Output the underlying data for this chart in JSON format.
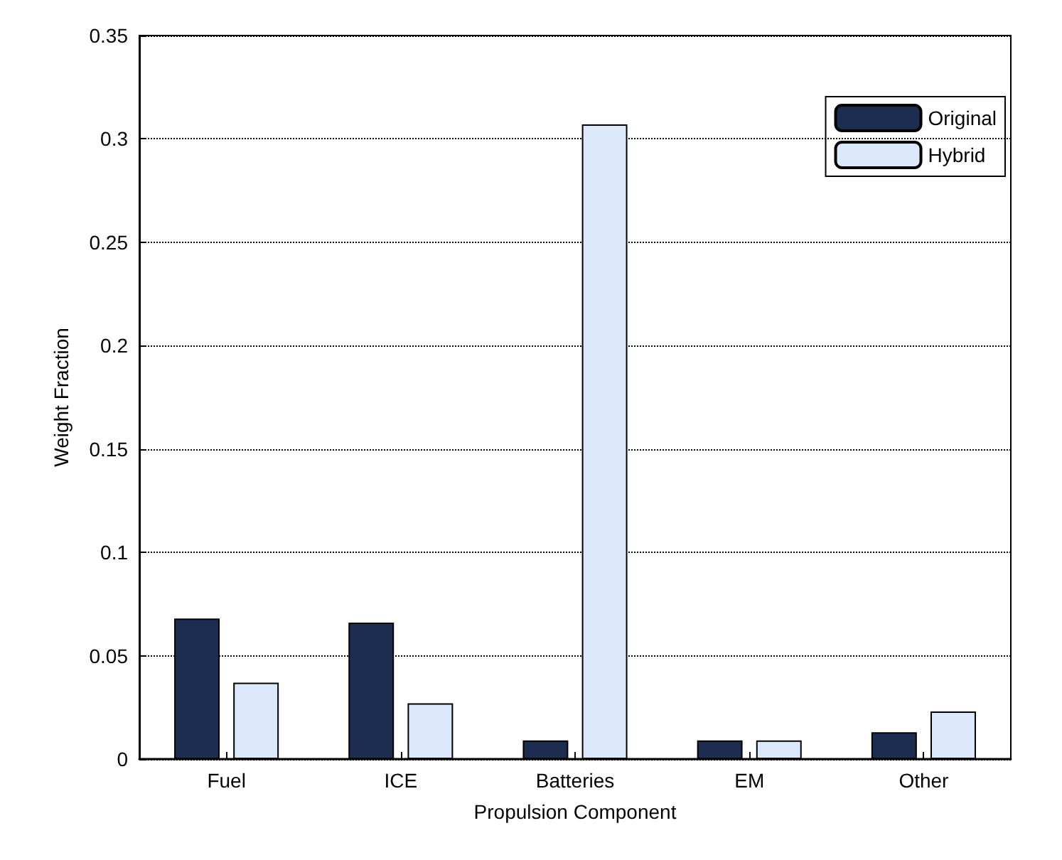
{
  "chart_data": {
    "type": "bar",
    "xlabel": "Propulsion Component",
    "ylabel": "Weight Fraction",
    "categories": [
      "Fuel",
      "ICE",
      "Batteries",
      "EM",
      "Other"
    ],
    "series": [
      {
        "name": "Original",
        "color": "#1c2d4f",
        "values": [
          0.068,
          0.066,
          0.009,
          0.009,
          0.013
        ]
      },
      {
        "name": "Hybrid",
        "color": "#dce9fb",
        "values": [
          0.037,
          0.027,
          0.307,
          0.009,
          0.023
        ]
      }
    ],
    "ylim": [
      0,
      0.35
    ],
    "yticks": [
      0,
      0.05,
      0.1,
      0.15,
      0.2,
      0.25,
      0.3,
      0.35
    ],
    "grid": "y",
    "legend": "top right"
  }
}
